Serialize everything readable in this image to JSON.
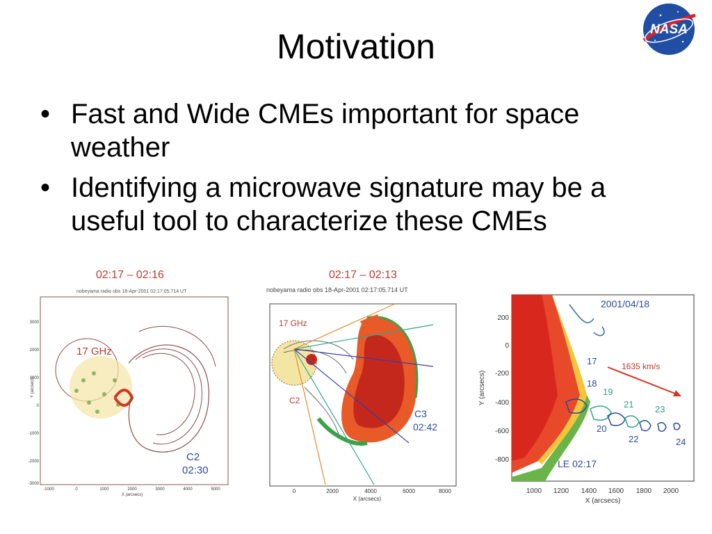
{
  "slide": {
    "title": "Motivation",
    "bullets": [
      "Fast and Wide CMEs important for space weather",
      "Identifying a microwave signature may be a useful tool to characterize these CMEs"
    ]
  },
  "logo": {
    "text": "NASA"
  },
  "panels": [
    {
      "label_top": "02:17 – 02:16",
      "header": "nobeyama radio obs   18-Apr-2001 02:17:05.714 UT",
      "freq": "17 GHz",
      "corner_label": [
        "C2",
        "02:30"
      ],
      "x_axis_label": "X (arcsecs)",
      "x_ticks": [
        "-1000",
        "0",
        "1000",
        "2000",
        "3000",
        "4000",
        "5000"
      ],
      "y_axis_label": "Y (arcsecs)",
      "y_ticks": [
        "3000",
        "2000",
        "1000",
        "0",
        "-1000",
        "-2000",
        "-3000"
      ]
    },
    {
      "label_top": "02:17 – 02:13",
      "header": "nobeyama radio obs   18-Apr-2001 02:17:05.714 UT",
      "freq": "17 GHz",
      "c2_label": "C2",
      "corner_label": [
        "C3",
        "02:42"
      ],
      "x_axis_label": "X (arcsecs)",
      "x_ticks": [
        "0",
        "2000",
        "4000",
        "6000",
        "8000"
      ]
    },
    {
      "date": "2001/04/18",
      "speed": "1635 km/s",
      "numbers": [
        "17",
        "18",
        "19",
        "20",
        "21",
        "22",
        "23",
        "24"
      ],
      "le_label": "LE  02:17",
      "x_axis_label": "X (arcsecs)",
      "x_ticks": [
        "1000",
        "1200",
        "1400",
        "1600",
        "1800",
        "2000"
      ],
      "y_axis_label": "Y (arcsecs)",
      "y_ticks": [
        "200",
        "0",
        "-200",
        "-400",
        "-600",
        "-800"
      ]
    }
  ]
}
